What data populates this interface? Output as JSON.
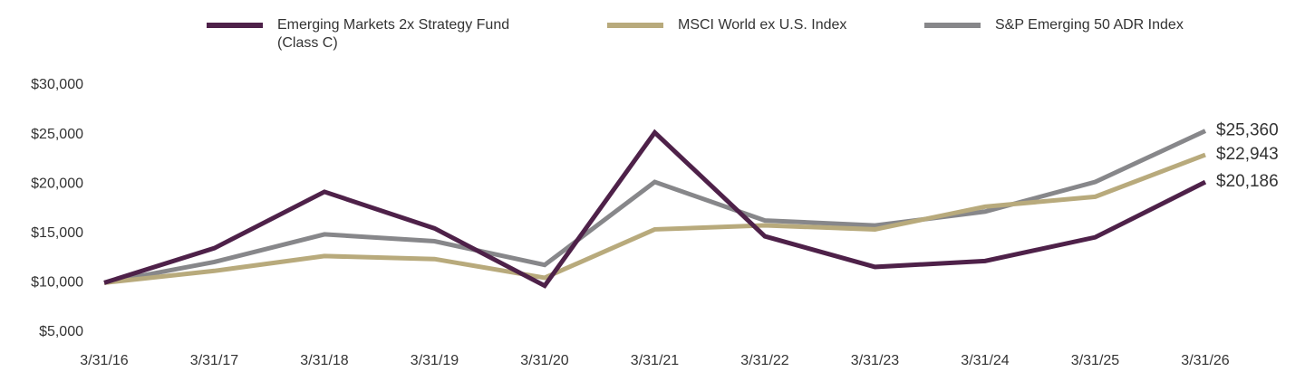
{
  "chart_data": {
    "type": "line",
    "categories": [
      "3/31/16",
      "3/31/17",
      "3/31/18",
      "3/31/19",
      "3/31/20",
      "3/31/21",
      "3/31/22",
      "3/31/23",
      "3/31/24",
      "3/31/25",
      "3/31/26"
    ],
    "series": [
      {
        "name": "Emerging Markets 2x Strategy Fund (Class C)",
        "color": "#4e2149",
        "values": [
          10000,
          13500,
          19200,
          15500,
          9700,
          25200,
          14700,
          11600,
          12200,
          14600,
          20186
        ],
        "value_labels": [
          null,
          null,
          null,
          null,
          null,
          null,
          null,
          null,
          null,
          null,
          "$20,186"
        ]
      },
      {
        "name": "MSCI World ex U.S. Index",
        "color": "#b8aa7c",
        "values": [
          10000,
          11200,
          12700,
          12400,
          10500,
          15400,
          15800,
          15400,
          17700,
          18700,
          22943
        ],
        "value_labels": [
          null,
          null,
          null,
          null,
          null,
          null,
          null,
          null,
          null,
          null,
          "$22,943"
        ]
      },
      {
        "name": "S&P Emerging 50 ADR Index",
        "color": "#87878a",
        "values": [
          10000,
          12100,
          14900,
          14200,
          11800,
          20200,
          16300,
          15800,
          17200,
          20200,
          25360
        ],
        "value_labels": [
          null,
          null,
          null,
          null,
          null,
          null,
          null,
          null,
          null,
          null,
          "$25,360"
        ]
      }
    ],
    "ylim": [
      5000,
      30000
    ],
    "yticks": [
      {
        "value": 5000,
        "label": "$5,000"
      },
      {
        "value": 10000,
        "label": "$10,000"
      },
      {
        "value": 15000,
        "label": "$15,000"
      },
      {
        "value": 20000,
        "label": "$20,000"
      },
      {
        "value": 25000,
        "label": "$25,000"
      },
      {
        "value": 30000,
        "label": "$30,000"
      }
    ],
    "grid": false
  }
}
